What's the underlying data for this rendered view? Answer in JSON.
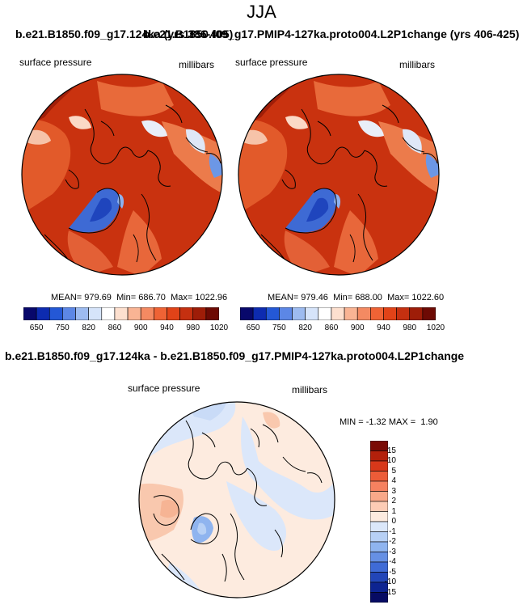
{
  "figure": {
    "title": "JJA",
    "variable": "surface pressure",
    "units": "millibars"
  },
  "panels": [
    {
      "title": "b.e21.B1850.f09_g17.124ka (yrs 386-405)",
      "stats": {
        "mean_label": "MEAN=",
        "mean": "979.69",
        "min_label": "Min=",
        "min": "686.70",
        "max_label": "Max=",
        "max": "1022.96"
      }
    },
    {
      "title": "b.e21.B1850.f09_g17.PMIP4-127ka.proto004.L2P1change (yrs 406-425)",
      "stats": {
        "mean_label": "MEAN=",
        "mean": "979.46",
        "min_label": "Min=",
        "min": "688.00",
        "max_label": "Max=",
        "max": "1022.60"
      }
    }
  ],
  "colorbar_horizontal": {
    "labels": [
      "650",
      "750",
      "820",
      "860",
      "900",
      "940",
      "980",
      "1020"
    ],
    "colors": [
      "#08086b",
      "#0d2bb0",
      "#2458d6",
      "#5c87e6",
      "#9dbbf0",
      "#d6e4fa",
      "#ffffff",
      "#fde0cf",
      "#f9b494",
      "#f48a62",
      "#ef6335",
      "#e14318",
      "#c53010",
      "#9e1d08",
      "#6d0a04"
    ]
  },
  "diff": {
    "title": "b.e21.B1850.f09_g17.124ka - b.e21.B1850.f09_g17.PMIP4-127ka.proto004.L2P1change",
    "min_label": "MIN =",
    "min": "-1.32",
    "max_label": "MAX =",
    "max": "1.90"
  },
  "colorbar_vertical": {
    "labels": [
      "15",
      "10",
      "5",
      "4",
      "3",
      "2",
      "1",
      "0",
      "-1",
      "-2",
      "-3",
      "-4",
      "-5",
      "-10",
      "-15"
    ],
    "colors": [
      "#7a0a05",
      "#b3200b",
      "#d8381a",
      "#ec5c38",
      "#f58160",
      "#f9a889",
      "#fdccb5",
      "#fdebdf",
      "#dbe7fa",
      "#b7d0f5",
      "#8fb4ef",
      "#6690e4",
      "#3f6bd6",
      "#2246b8",
      "#0d2491",
      "#070b63"
    ]
  }
}
